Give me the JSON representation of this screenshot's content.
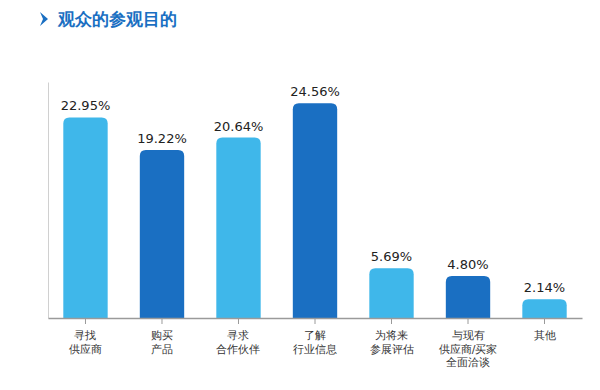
{
  "chart_data": {
    "type": "bar",
    "title": "观众的参观目的",
    "categories": [
      "寻找\n供应商",
      "购买\n产品",
      "寻求\n合作伙伴",
      "了解\n行业信息",
      "为将来\n参展评估",
      "与现有\n供应商/买家\n全面洽谈",
      "其他"
    ],
    "values": [
      22.95,
      19.22,
      20.64,
      24.56,
      5.69,
      4.8,
      2.14
    ],
    "value_labels": [
      "22.95%",
      "19.22%",
      "20.64%",
      "24.56%",
      "5.69%",
      "4.80%",
      "2.14%"
    ],
    "colors": [
      "#3fb7ea",
      "#1a6fc2",
      "#3fb7ea",
      "#1a6fc2",
      "#3fb7ea",
      "#1a6fc2",
      "#3fb7ea"
    ],
    "ylim": [
      0,
      27
    ],
    "data_labels": true,
    "tick_labels": "x",
    "grid": false
  }
}
